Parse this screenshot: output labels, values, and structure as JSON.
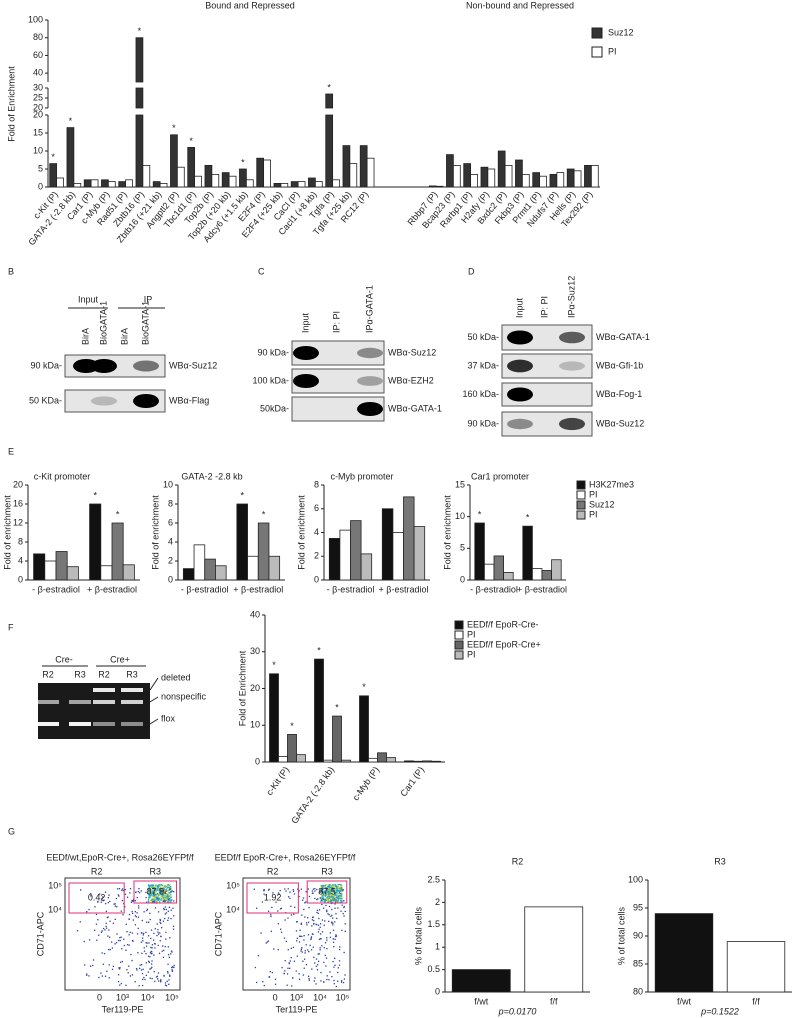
{
  "panel_labels": [
    "B",
    "C",
    "D",
    "E",
    "F",
    "G"
  ],
  "chart_data": [
    {
      "type": "bar",
      "group_titles": [
        "Bound and Repressed",
        "Non-bound and Repressed"
      ],
      "ylabel": "Fold of Enrichment",
      "categories": [
        "c-Kit (P)",
        "GATA-2 (-2.8 kb)",
        "Car1 (P)",
        "c-Myb (P)",
        "Rad51 (P)",
        "Zbtb16 (P)",
        "Zbtb16 (+21 kb)",
        "Angptl2 (P)",
        "Tbc1d1 (P)",
        "Top2b (P)",
        "Top2b (+20 kb)",
        "Adcy6 (+1.5 kb)",
        "E2F4 (P)",
        "E2F4 (+25 kb)",
        "CaCl (P)",
        "Cacl1 (+8 kb)",
        "Tgfa (P)",
        "Tgfa (+25 kb)",
        "RC12 (P)",
        null,
        null,
        null,
        "Rbbp7 (P)",
        "Bcap23 (P)",
        "Rarbp1 (P)",
        "H2afy (P)",
        "Bxdc2 (P)",
        "Fkbp3 (P)",
        "Prmt1 (P)",
        "Ndufs7 (P)",
        "Hells (P)",
        "Tex292 (P)"
      ],
      "series": [
        {
          "name": "Suz12",
          "color": "#333333",
          "values": [
            6.5,
            16.5,
            2,
            2,
            1.5,
            80,
            1.5,
            14.5,
            11,
            6,
            4,
            5,
            8,
            1,
            1.5,
            2.5,
            27,
            11.5,
            11.5,
            null,
            null,
            null,
            0.3,
            9,
            6.5,
            5.5,
            10,
            7.5,
            4,
            3.5,
            5,
            6
          ],
          "markers": [
            "*",
            "*",
            null,
            null,
            null,
            "*",
            null,
            "*",
            "*",
            null,
            null,
            "*",
            null,
            null,
            null,
            null,
            "*",
            null,
            null,
            null,
            null,
            null,
            null,
            null,
            null,
            null,
            null,
            null,
            null,
            null,
            null,
            null
          ]
        },
        {
          "name": "PI",
          "color": "#ffffff",
          "values": [
            2.5,
            1,
            2,
            1.5,
            2,
            6,
            1,
            5.5,
            3,
            3.5,
            3,
            2,
            7.5,
            1,
            1.5,
            1.5,
            2,
            6.5,
            8,
            null,
            null,
            null,
            0.2,
            6,
            3.5,
            5,
            6,
            3.5,
            3,
            4,
            4.5,
            6
          ]
        }
      ],
      "y_segments": [
        {
          "ylim": [
            0,
            20
          ],
          "yticks": [
            0,
            5,
            10,
            15,
            20
          ]
        },
        {
          "ylim": [
            20,
            30
          ],
          "yticks": [
            20,
            25,
            30
          ]
        },
        {
          "ylim": [
            30,
            100
          ],
          "yticks": [
            40,
            60,
            80,
            100
          ]
        }
      ]
    },
    {
      "type": "bar",
      "title": "c-Kit promoter",
      "ylabel": "Fold of enrichment",
      "categories": [
        "- β-estradiol",
        "+ β-estradiol"
      ],
      "series": [
        {
          "color": "#111111",
          "values": [
            5.5,
            16
          ],
          "markers": [
            null,
            "*"
          ]
        },
        {
          "color": "#ffffff",
          "values": [
            4,
            3
          ]
        },
        {
          "color": "#777777",
          "values": [
            6,
            12
          ],
          "markers": [
            null,
            "*"
          ]
        },
        {
          "color": "#bbbbbb",
          "values": [
            2.8,
            3.2
          ]
        }
      ],
      "ylim": [
        0,
        20
      ],
      "yticks": [
        0,
        4,
        8,
        12,
        16,
        20
      ]
    },
    {
      "type": "bar",
      "title": "GATA-2 -2.8 kb",
      "ylabel": "Fold of enrichment",
      "categories": [
        "- β-estradiol",
        "+ β-estradiol"
      ],
      "series": [
        {
          "color": "#111111",
          "values": [
            1.2,
            8
          ],
          "markers": [
            null,
            "*"
          ]
        },
        {
          "color": "#ffffff",
          "values": [
            3.7,
            2.5
          ]
        },
        {
          "color": "#777777",
          "values": [
            2.2,
            6
          ],
          "markers": [
            null,
            "*"
          ]
        },
        {
          "color": "#bbbbbb",
          "values": [
            1.5,
            2.5
          ]
        }
      ],
      "ylim": [
        0,
        10
      ],
      "yticks": [
        0,
        2,
        4,
        6,
        8,
        10
      ]
    },
    {
      "type": "bar",
      "title": "c-Myb promoter",
      "ylabel": "Fold of enrichment",
      "categories": [
        "- β-estradiol",
        "+ β-estradiol"
      ],
      "series": [
        {
          "color": "#111111",
          "values": [
            3.5,
            6
          ]
        },
        {
          "color": "#ffffff",
          "values": [
            4.2,
            4
          ]
        },
        {
          "color": "#777777",
          "values": [
            5,
            7
          ]
        },
        {
          "color": "#bbbbbb",
          "values": [
            2.2,
            4.5
          ]
        }
      ],
      "ylim": [
        0,
        8
      ],
      "yticks": [
        0,
        2,
        4,
        6,
        8
      ]
    },
    {
      "type": "bar",
      "title": "Car1 promoter",
      "ylabel": "Fold of enrichment",
      "categories": [
        "- β-estradiol",
        "+ β-estradiol"
      ],
      "series": [
        {
          "name": "H3K27me3",
          "color": "#111111",
          "values": [
            9,
            8.5
          ],
          "markers": [
            "*",
            "*"
          ]
        },
        {
          "name": "PI",
          "color": "#ffffff",
          "values": [
            2.5,
            1.8
          ]
        },
        {
          "name": "Suz12",
          "color": "#777777",
          "values": [
            3.8,
            1.5
          ]
        },
        {
          "name": "PI",
          "color": "#bbbbbb",
          "values": [
            1.2,
            3.2
          ]
        }
      ],
      "ylim": [
        0,
        15
      ],
      "yticks": [
        0,
        5,
        10,
        15
      ]
    },
    {
      "type": "bar",
      "ylabel": "Fold of Enrichment",
      "categories": [
        "c-Kit (P)",
        "GATA-2 (-2.8 kb)",
        "c-Myb (P)",
        "Car1 (P)"
      ],
      "series": [
        {
          "name": "EEDf/f EpoR-Cre-",
          "color": "#111111",
          "values": [
            24,
            28,
            18,
            0.3
          ],
          "markers": [
            "*",
            "*",
            "*",
            null
          ]
        },
        {
          "name": "PI",
          "color": "#ffffff",
          "values": [
            1.5,
            0.5,
            1,
            0.2
          ]
        },
        {
          "name": "EEDf/f EpoR-Cre+",
          "color": "#666666",
          "values": [
            7.5,
            12.5,
            2.5,
            0.3
          ],
          "markers": [
            "*",
            "*",
            null,
            null
          ]
        },
        {
          "name": "PI",
          "color": "#bbbbbb",
          "values": [
            2,
            0.5,
            1.2,
            0.2
          ]
        }
      ],
      "ylim": [
        0,
        40
      ],
      "yticks": [
        0,
        10,
        20,
        30,
        40
      ]
    },
    {
      "type": "bar",
      "title": "R2",
      "ylabel": "% of total cells",
      "categories": [
        "f/wt",
        "f/f"
      ],
      "series": [
        {
          "colors": [
            "#111111",
            "#ffffff"
          ],
          "values": [
            0.5,
            1.9
          ]
        }
      ],
      "ylim": [
        0,
        2.5
      ],
      "yticks": [
        0,
        0.5,
        1,
        1.5,
        2,
        2.5
      ],
      "note": "p=0.0170"
    },
    {
      "type": "bar",
      "title": "R3",
      "ylabel": "% of total cells",
      "categories": [
        "f/wt",
        "f/f"
      ],
      "series": [
        {
          "colors": [
            "#111111",
            "#ffffff"
          ],
          "values": [
            94,
            89
          ]
        }
      ],
      "ylim": [
        80,
        100
      ],
      "yticks": [
        80,
        85,
        90,
        95,
        100
      ],
      "note": "p=0.1522"
    }
  ],
  "blots": [
    {
      "group_headers": [
        "Input",
        "IP"
      ],
      "lanes": [
        "BirA",
        "BioGATA-1",
        "BirA",
        "BioGATA-1"
      ],
      "rows": [
        {
          "size": "90 kDa-",
          "antibody": "WBα-Suz12"
        },
        {
          "size": "50 KDa-",
          "antibody": "WBα-Flag"
        }
      ]
    },
    {
      "lanes": [
        "Input",
        "IP: PI",
        "IPα-GATA-1"
      ],
      "rows": [
        {
          "size": "90 kDa-",
          "antibody": "WBα-Suz12"
        },
        {
          "size": "100 kDa-",
          "antibody": "WBα-EZH2"
        },
        {
          "size": "50kDa-",
          "antibody": "WBα-GATA-1"
        }
      ]
    },
    {
      "lanes": [
        "Input",
        "IP: PI",
        "IPα-Suz12"
      ],
      "rows": [
        {
          "size": "50 kDa-",
          "antibody": "WBα-GATA-1"
        },
        {
          "size": "37 kDa-",
          "antibody": "WBα-Gfi-1b"
        },
        {
          "size": "160 kDa-",
          "antibody": "WBα-Fog-1"
        },
        {
          "size": "90 kDa-",
          "antibody": "WBα-Suz12"
        }
      ]
    }
  ],
  "gel": {
    "group_headers": [
      "Cre-",
      "Cre+"
    ],
    "lanes": [
      "R2",
      "R3",
      "R2",
      "R3"
    ],
    "bands": [
      "deleted",
      "nonspecific",
      "flox"
    ]
  },
  "flow": [
    {
      "title": "EEDf/wt,EpoR-Cre+, Rosa26EYFPf/f",
      "gates": [
        "R2",
        "R3"
      ],
      "gate_values": [
        0.42,
        87.8
      ],
      "ylabel": "CD71-APC",
      "xlabel": "Ter119-PE",
      "xticks": [
        "0",
        "10³",
        "10⁴",
        "10⁵"
      ],
      "yticks": [
        "10⁵",
        "10⁴"
      ]
    },
    {
      "title": "EEDf/f EpoR-Cre+, Rosa26EYFPf/f",
      "gates": [
        "R2",
        "R3"
      ],
      "gate_values": [
        1.92,
        87.5
      ],
      "ylabel": "CD71-APC",
      "xlabel": "Ter119-PE",
      "xticks": [
        "0",
        "10³",
        "10⁴",
        "10⁵"
      ],
      "yticks": [
        "10⁵",
        "10⁴"
      ]
    }
  ]
}
